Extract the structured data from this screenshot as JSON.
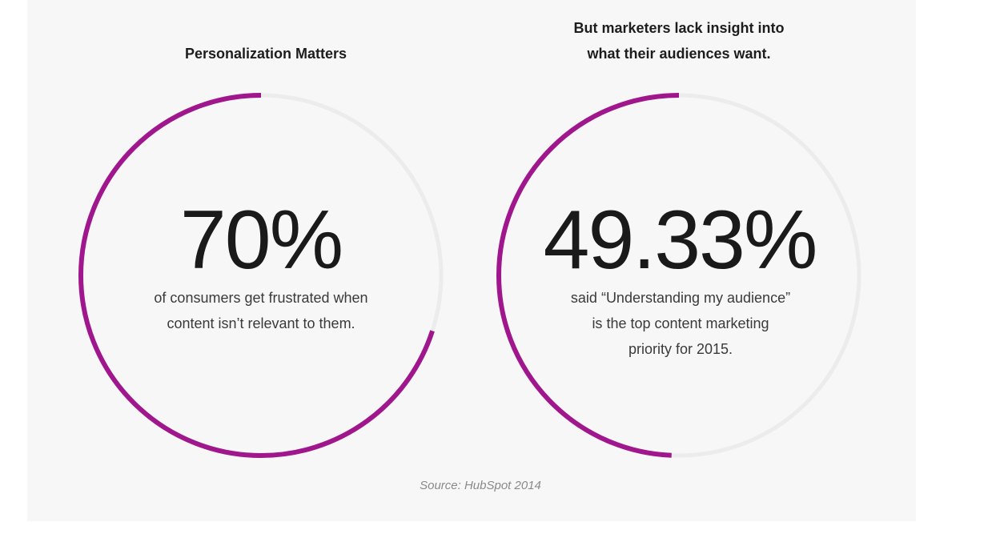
{
  "colors": {
    "accent": "#a0168c",
    "track": "#ececec",
    "background": "#f7f7f8"
  },
  "left_panel": {
    "title": "Personalization Matters",
    "value_label": "70%",
    "caption": "of consumers get frustrated when content isn’t relevant to them."
  },
  "right_panel": {
    "title": "But marketers lack insight into what their audiences want.",
    "value_label": "49.33%",
    "caption": "said “Understanding my audience” is the top content marketing priority for 2015."
  },
  "source": "Source: HubSpot 2014",
  "chart_data": [
    {
      "type": "pie",
      "style": "donut-progress",
      "value": 70,
      "max": 100,
      "label": "70%"
    },
    {
      "type": "pie",
      "style": "donut-progress",
      "value": 49.33,
      "max": 100,
      "label": "49.33%"
    }
  ]
}
